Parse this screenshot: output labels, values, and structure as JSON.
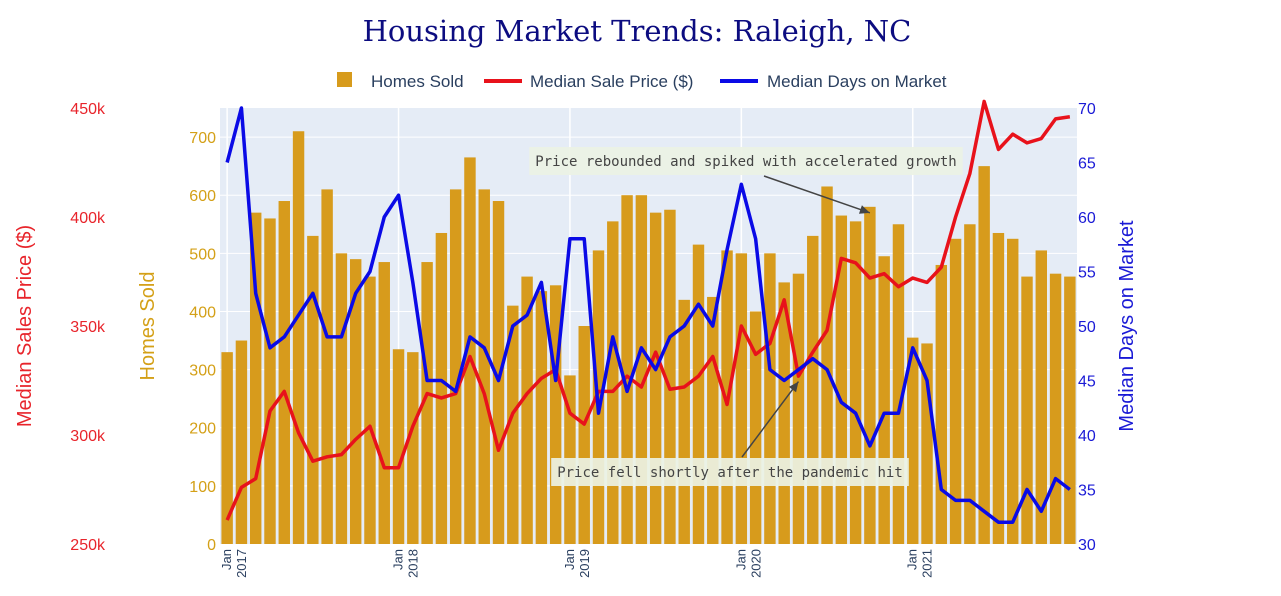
{
  "chart_data": {
    "type": "bar+line",
    "title": "Housing Market Trends: Raleigh, NC",
    "legend": {
      "placement": "top-center",
      "items": [
        "Homes Sold",
        "Median Sale Price ($)",
        "Median Days on Market"
      ]
    },
    "x": {
      "start": "2017-01",
      "end": "2021-12",
      "ticks": [
        {
          "month": "Jan",
          "year": "2017",
          "index": 0
        },
        {
          "month": "Jan",
          "year": "2018",
          "index": 12
        },
        {
          "month": "Jan",
          "year": "2019",
          "index": 24
        },
        {
          "month": "Jan",
          "year": "2020",
          "index": 36
        },
        {
          "month": "Jan",
          "year": "2021",
          "index": 48
        }
      ]
    },
    "axes": {
      "homes_sold": {
        "label": "Homes Sold",
        "range": [
          0,
          750
        ],
        "ticks": [
          0,
          100,
          200,
          300,
          400,
          500,
          600,
          700
        ],
        "color": "#d4a017"
      },
      "price": {
        "label": "Median Sales Price ($)",
        "range": [
          250000,
          450000
        ],
        "ticks": [
          250000,
          300000,
          350000,
          400000,
          450000
        ],
        "tick_labels": [
          "250k",
          "300k",
          "350k",
          "400k",
          "450k"
        ],
        "color": "#e8242b"
      },
      "days": {
        "label": "Median Days on Market",
        "range": [
          30,
          70
        ],
        "ticks": [
          30,
          35,
          40,
          45,
          50,
          55,
          60,
          65,
          70
        ],
        "color": "#1a1ad6"
      }
    },
    "series": [
      {
        "name": "Homes Sold",
        "type": "bar",
        "axis": "homes_sold",
        "color": "#d79b1c",
        "values": [
          330,
          350,
          570,
          560,
          590,
          710,
          530,
          610,
          500,
          490,
          460,
          485,
          335,
          330,
          485,
          535,
          610,
          665,
          610,
          590,
          410,
          460,
          435,
          445,
          290,
          375,
          505,
          555,
          600,
          600,
          570,
          575,
          420,
          515,
          425,
          505,
          500,
          400,
          500,
          450,
          465,
          530,
          615,
          565,
          555,
          580,
          495,
          550,
          355,
          345,
          480,
          525,
          550,
          650,
          535,
          525,
          460,
          505,
          465,
          460
        ]
      },
      {
        "name": "Median Sale Price ($)",
        "type": "line",
        "axis": "price",
        "color": "#e8121b",
        "values": [
          261000,
          276000,
          280000,
          311000,
          320000,
          301000,
          288000,
          290000,
          291000,
          298000,
          304000,
          285000,
          285000,
          304000,
          319000,
          317000,
          319000,
          336000,
          319000,
          293000,
          310000,
          319000,
          326000,
          330000,
          310000,
          305000,
          320000,
          320000,
          327000,
          322000,
          338000,
          321000,
          322000,
          327000,
          336000,
          314000,
          350000,
          337000,
          342000,
          362000,
          327000,
          338000,
          348000,
          381000,
          379000,
          372000,
          374000,
          368000,
          372000,
          370000,
          377000,
          400000,
          420000,
          453000,
          431000,
          438000,
          434000,
          436000,
          445000,
          446000
        ]
      },
      {
        "name": "Median Days on Market",
        "type": "line",
        "axis": "days",
        "color": "#0a0ae6",
        "values": [
          65,
          70,
          53,
          48,
          49,
          51,
          53,
          49,
          49,
          53,
          55,
          60,
          62,
          54,
          45,
          45,
          44,
          49,
          48,
          45,
          50,
          51,
          54,
          45,
          58,
          58,
          42,
          49,
          44,
          48,
          46,
          49,
          50,
          52,
          50,
          57,
          63,
          58,
          46,
          45,
          46,
          47,
          46,
          43,
          42,
          39,
          42,
          42,
          48,
          45,
          35,
          34,
          34,
          33,
          32,
          32,
          35,
          33,
          36,
          35
        ]
      }
    ],
    "annotations": [
      {
        "text": "Price rebounded and spiked with accelerated growth",
        "points_to_index": 45,
        "series": "Homes Sold"
      },
      {
        "text": "Price fell shortly after the pandemic hit",
        "points_to_index": 40,
        "series": "Median Days on Market"
      }
    ]
  }
}
